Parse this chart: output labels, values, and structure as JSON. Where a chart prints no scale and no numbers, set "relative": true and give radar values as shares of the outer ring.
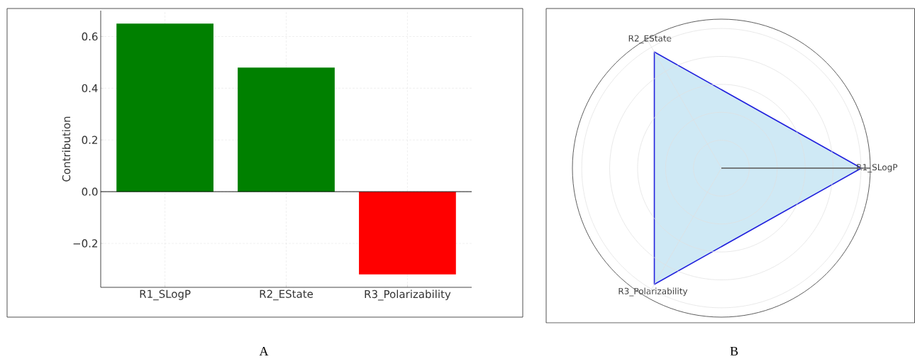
{
  "chart_data": [
    {
      "type": "bar",
      "categories": [
        "R1_SLogP",
        "R2_EState",
        "R3_Polarizability"
      ],
      "values": [
        0.65,
        0.48,
        -0.32
      ],
      "colors": [
        "#008000",
        "#008000",
        "#ff0000"
      ],
      "ylabel": "Contribution",
      "ylim": [
        -0.37,
        0.7
      ],
      "yticks": [
        {
          "value": -0.2,
          "label": "−0.2"
        },
        {
          "value": 0,
          "label": "0.0"
        },
        {
          "value": 0.2,
          "label": "0.2"
        },
        {
          "value": 0.4,
          "label": "0.4"
        },
        {
          "value": 0.6,
          "label": "0.6"
        }
      ],
      "grid": true,
      "ref_lines": [
        {
          "axis": "y",
          "value": 0,
          "color": "#000000"
        }
      ],
      "annotations": [
        "A"
      ]
    },
    {
      "type": "radar",
      "categories": [
        "R1_SLogP",
        "R3_Polarizability",
        "R2_EState"
      ],
      "relative": true,
      "series": [
        {
          "color": "#2222dd",
          "values": [
            0.94,
            0.9,
            0.9
          ]
        }
      ],
      "grid": true,
      "annotations": [
        "B"
      ]
    }
  ]
}
